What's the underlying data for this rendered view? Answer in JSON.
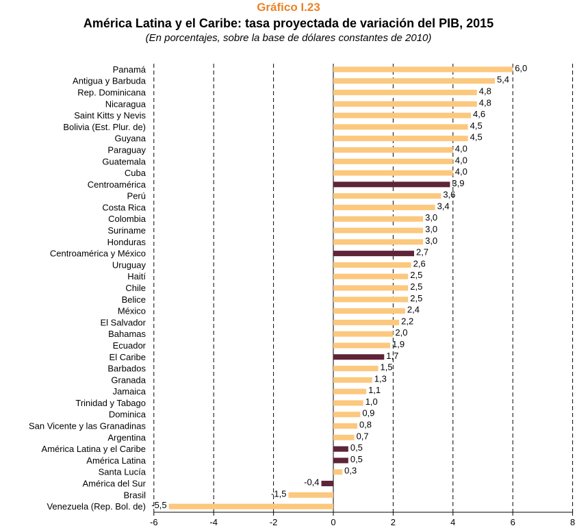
{
  "header": {
    "kicker": "Gráfico I.23",
    "title": "América Latina y el Caribe: tasa proyectada de variación del PIB, 2015",
    "subtitle": "(En porcentajes, sobre la base de dólares constantes de 2010)"
  },
  "colors": {
    "country": "#fcc87e",
    "aggregate": "#5e2437",
    "title_accent": "#e8832a"
  },
  "chart_data": {
    "type": "bar",
    "orientation": "horizontal",
    "categories": [
      "Panamá",
      "Antigua y Barbuda",
      "Rep. Dominicana",
      "Nicaragua",
      "Saint Kitts y Nevis",
      "Bolivia (Est. Plur. de)",
      "Guyana",
      "Paraguay",
      "Guatemala",
      "Cuba",
      "Centroamérica",
      "Perú",
      "Costa Rica",
      "Colombia",
      "Suriname",
      "Honduras",
      "Centroamérica y México",
      "Uruguay",
      "Haití",
      "Chile",
      "Belice",
      "México",
      "El Salvador",
      "Bahamas",
      "Ecuador",
      "El Caribe",
      "Barbados",
      "Granada",
      "Jamaica",
      "Trinidad y Tabago",
      "Dominica",
      "San Vicente y las Granadinas",
      "Argentina",
      "América Latina y el Caribe",
      "América Latina",
      "Santa Lucía",
      "América del Sur",
      "Brasil",
      "Venezuela (Rep. Bol. de)"
    ],
    "values": [
      6.0,
      5.4,
      4.8,
      4.8,
      4.6,
      4.5,
      4.5,
      4.0,
      4.0,
      4.0,
      3.9,
      3.6,
      3.4,
      3.0,
      3.0,
      3.0,
      2.7,
      2.6,
      2.5,
      2.5,
      2.5,
      2.4,
      2.2,
      2.0,
      1.9,
      1.7,
      1.5,
      1.3,
      1.1,
      1.0,
      0.9,
      0.8,
      0.7,
      0.5,
      0.5,
      0.3,
      -0.4,
      -1.5,
      -5.5
    ],
    "value_labels": [
      "6,0",
      "5,4",
      "4,8",
      "4,8",
      "4,6",
      "4,5",
      "4,5",
      "4,0",
      "4,0",
      "4,0",
      "3,9",
      "3,6",
      "3,4",
      "3,0",
      "3,0",
      "3,0",
      "2,7",
      "2,6",
      "2,5",
      "2,5",
      "2,5",
      "2,4",
      "2,2",
      "2,0",
      "1,9",
      "1,7",
      "1,5",
      "1,3",
      "1,1",
      "1,0",
      "0,9",
      "0,8",
      "0,7",
      "0,5",
      "0,5",
      "0,3",
      "-0,4",
      "-1,5",
      "-5,5"
    ],
    "aggregates": [
      "Centroamérica",
      "Centroamérica y México",
      "El Caribe",
      "América Latina y el Caribe",
      "América Latina",
      "América del Sur"
    ],
    "xlim": [
      -6,
      8
    ],
    "ticks": [
      -6,
      -4,
      -2,
      0,
      2,
      4,
      6,
      8
    ],
    "tick_labels": [
      "-6",
      "-4",
      "-2",
      "0",
      "2",
      "4",
      "6",
      "8"
    ],
    "grid": "vertical dashed",
    "legend": "none"
  }
}
